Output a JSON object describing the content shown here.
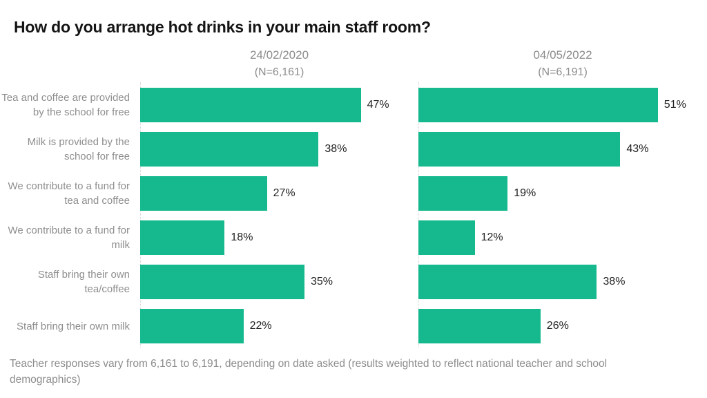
{
  "title": "How do you arrange hot drinks in your main staff room?",
  "footer": "Teacher responses vary from 6,161 to 6,191, depending on date asked (results weighted to reflect national teacher and school demographics)",
  "colors": {
    "bar": "#16b98e",
    "category_label": "#8e8e8e",
    "value_label": "#1f1f1f",
    "header_gray": "#8c8c8c",
    "axis_dotted_line": "#d4d4d4",
    "background": "#ffffff"
  },
  "chart_data": {
    "type": "bar",
    "orientation": "horizontal",
    "title": "How do you arrange hot drinks in your main staff room?",
    "categories": [
      "Tea and coffee are provided by the school for free",
      "Milk is provided by the school for free",
      "We contribute to a fund for tea and coffee",
      "We contribute to a fund for milk",
      "Staff bring their own tea/coffee",
      "Staff bring their own milk"
    ],
    "series": [
      {
        "name": "24/02/2020",
        "subtitle": "(N=6,161)",
        "values": [
          47,
          38,
          27,
          18,
          35,
          22
        ],
        "value_labels": [
          "47%",
          "38%",
          "27%",
          "18%",
          "35%",
          "22%"
        ]
      },
      {
        "name": "04/05/2022",
        "subtitle": "(N=6,191)",
        "values": [
          51,
          43,
          19,
          12,
          38,
          26
        ],
        "value_labels": [
          "51%",
          "43%",
          "19%",
          "12%",
          "38%",
          "26%"
        ]
      }
    ],
    "value_suffix": "%",
    "xlim": [
      0,
      55
    ],
    "grid": false,
    "legend_position": "column-headers",
    "value_labels_shown": true
  }
}
